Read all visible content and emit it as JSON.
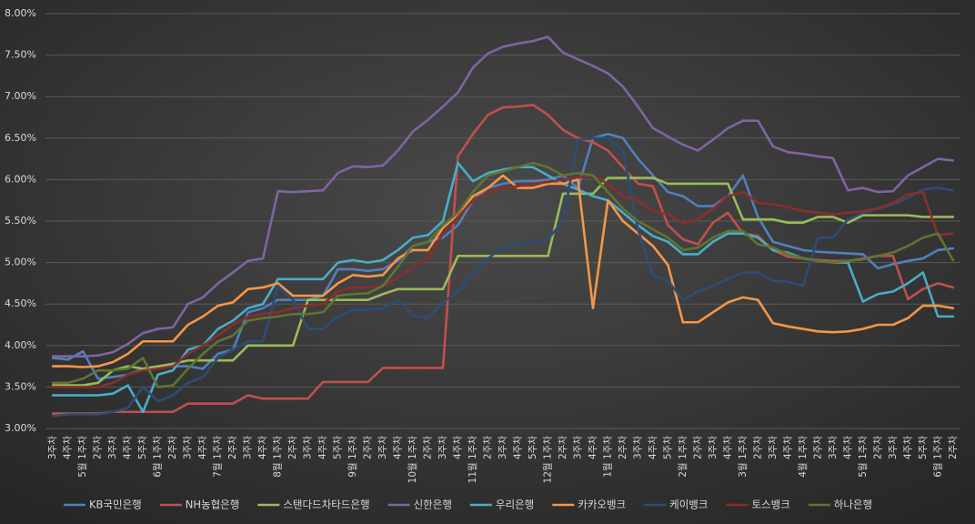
{
  "chart_data": {
    "type": "line",
    "categories": [
      "3주차",
      "4주차",
      "5월 1주차",
      "2주차",
      "3주차",
      "4주차",
      "5주차",
      "6월 1주차",
      "2주차",
      "3주차",
      "4주차",
      "7월 1주차",
      "2주차",
      "3주차",
      "4주차",
      "8월 1주차",
      "2주차",
      "3주차",
      "4주차",
      "5주차",
      "9월 1주차",
      "2주차",
      "3주차",
      "4주차",
      "10월 1주차",
      "2주차",
      "3주차",
      "4주차",
      "11월 1주차",
      "2주차",
      "3주차",
      "4주차",
      "5주차",
      "12월 1주차",
      "2주차",
      "3주차",
      "4주차",
      "1월 1주차",
      "2주차",
      "3주차",
      "4주차",
      "5주차",
      "2월 1주차",
      "2주차",
      "3주차",
      "4주차",
      "3월 1주차",
      "2주차",
      "3주차",
      "4주차",
      "4월 1주차",
      "2주차",
      "3주차",
      "4주차",
      "5월 1주차",
      "2주차",
      "3주차",
      "4주차",
      "5주차",
      "6월 1주차",
      "2주차"
    ],
    "ylim": [
      3,
      8
    ],
    "yticks": [
      {
        "value": 3,
        "label": "3.00%"
      },
      {
        "value": 3.5,
        "label": "3.50%"
      },
      {
        "value": 4,
        "label": "4.00%"
      },
      {
        "value": 4.5,
        "label": "4.50%"
      },
      {
        "value": 5,
        "label": "5.00%"
      },
      {
        "value": 5.5,
        "label": "5.50%"
      },
      {
        "value": 6,
        "label": "6.00%"
      },
      {
        "value": 6.5,
        "label": "6.50%"
      },
      {
        "value": 7,
        "label": "7.00%"
      },
      {
        "value": 7.5,
        "label": "7.50%"
      },
      {
        "value": 8,
        "label": "8.00%"
      }
    ],
    "grid": true,
    "legend": "bottom",
    "series": [
      {
        "name": "KB국민은행",
        "color": "#4f81bd",
        "values": [
          3.85,
          3.83,
          3.93,
          3.6,
          3.62,
          3.65,
          3.72,
          3.75,
          3.75,
          3.75,
          3.72,
          3.9,
          3.95,
          4.4,
          4.45,
          4.55,
          4.55,
          4.55,
          4.6,
          4.92,
          4.92,
          4.9,
          4.92,
          5.02,
          5.2,
          5.25,
          5.3,
          5.45,
          5.75,
          5.9,
          5.95,
          5.98,
          5.98,
          6.0,
          6.05,
          5.9,
          6.5,
          6.55,
          6.5,
          6.25,
          6.05,
          5.85,
          5.8,
          5.68,
          5.68,
          5.8,
          6.05,
          5.55,
          5.25,
          5.2,
          5.15,
          5.13,
          5.12,
          5.11,
          5.1,
          4.93,
          4.98,
          5.02,
          5.05,
          5.15,
          5.17
        ]
      },
      {
        "name": "NH농협은행",
        "color": "#c0504d",
        "values": [
          3.18,
          3.18,
          3.18,
          3.18,
          3.2,
          3.2,
          3.2,
          3.2,
          3.2,
          3.3,
          3.3,
          3.3,
          3.3,
          3.4,
          3.36,
          3.36,
          3.36,
          3.36,
          3.56,
          3.56,
          3.56,
          3.56,
          3.73,
          3.73,
          3.73,
          3.73,
          3.73,
          6.28,
          6.55,
          6.78,
          6.87,
          6.88,
          6.9,
          6.78,
          6.6,
          6.5,
          6.45,
          6.35,
          6.15,
          5.95,
          5.92,
          5.45,
          5.28,
          5.22,
          5.48,
          5.6,
          5.35,
          5.32,
          5.15,
          5.07,
          5.05,
          5.03,
          5.02,
          5.02,
          5.04,
          5.08,
          5.08,
          4.56,
          4.68,
          4.75,
          4.7
        ]
      },
      {
        "name": "스탠다드차타드은행",
        "color": "#9bbb59",
        "values": [
          3.52,
          3.52,
          3.52,
          3.55,
          3.7,
          3.75,
          3.72,
          3.75,
          3.78,
          3.82,
          3.82,
          3.82,
          3.82,
          4.0,
          4.0,
          4.0,
          4.0,
          4.55,
          4.55,
          4.55,
          4.55,
          4.55,
          4.62,
          4.68,
          4.68,
          4.68,
          4.68,
          5.08,
          5.08,
          5.08,
          5.08,
          5.08,
          5.08,
          5.08,
          5.83,
          5.83,
          5.83,
          6.02,
          6.02,
          6.02,
          6.02,
          5.95,
          5.95,
          5.95,
          5.95,
          5.95,
          5.52,
          5.52,
          5.52,
          5.48,
          5.48,
          5.55,
          5.55,
          5.48,
          5.57,
          5.57,
          5.57,
          5.57,
          5.55,
          5.55,
          5.55
        ]
      },
      {
        "name": "신한은행",
        "color": "#8064a2",
        "values": [
          3.87,
          3.87,
          3.87,
          3.88,
          3.92,
          4.02,
          4.15,
          4.2,
          4.22,
          4.5,
          4.58,
          4.75,
          4.88,
          5.02,
          5.05,
          5.86,
          5.85,
          5.86,
          5.87,
          6.08,
          6.16,
          6.15,
          6.17,
          6.35,
          6.58,
          6.72,
          6.88,
          7.05,
          7.35,
          7.52,
          7.6,
          7.64,
          7.67,
          7.72,
          7.53,
          7.45,
          7.37,
          7.28,
          7.12,
          6.88,
          6.62,
          6.52,
          6.42,
          6.35,
          6.48,
          6.62,
          6.71,
          6.71,
          6.4,
          6.33,
          6.31,
          6.28,
          6.26,
          5.87,
          5.9,
          5.85,
          5.86,
          6.05,
          6.15,
          6.25,
          6.23
        ]
      },
      {
        "name": "우리은행",
        "color": "#4bacc6",
        "values": [
          3.4,
          3.4,
          3.4,
          3.4,
          3.42,
          3.52,
          3.2,
          3.65,
          3.7,
          3.95,
          4.0,
          4.2,
          4.3,
          4.45,
          4.5,
          4.8,
          4.8,
          4.8,
          4.8,
          5.0,
          5.03,
          5.0,
          5.03,
          5.15,
          5.3,
          5.33,
          5.5,
          6.2,
          5.98,
          6.08,
          6.12,
          6.15,
          6.15,
          6.05,
          5.95,
          5.88,
          5.8,
          5.75,
          5.6,
          5.45,
          5.32,
          5.25,
          5.1,
          5.1,
          5.25,
          5.35,
          5.35,
          5.3,
          5.15,
          5.12,
          5.05,
          5.02,
          5.0,
          5.0,
          4.53,
          4.62,
          4.65,
          4.75,
          4.88,
          4.35,
          4.35
        ]
      },
      {
        "name": "카카오뱅크",
        "color": "#f79646",
        "values": [
          3.75,
          3.75,
          3.74,
          3.75,
          3.8,
          3.9,
          4.05,
          4.05,
          4.05,
          4.25,
          4.35,
          4.48,
          4.52,
          4.68,
          4.7,
          4.75,
          4.6,
          4.6,
          4.6,
          4.75,
          4.85,
          4.83,
          4.85,
          5.05,
          5.15,
          5.15,
          5.42,
          5.58,
          5.8,
          5.9,
          6.05,
          5.9,
          5.9,
          5.95,
          5.95,
          6.0,
          4.45,
          5.75,
          5.5,
          5.35,
          5.2,
          4.97,
          4.28,
          4.28,
          4.4,
          4.52,
          4.58,
          4.55,
          4.27,
          4.23,
          4.2,
          4.17,
          4.16,
          4.17,
          4.2,
          4.25,
          4.25,
          4.33,
          4.48,
          4.48,
          4.45
        ]
      },
      {
        "name": "케이뱅크",
        "color": "#2c4d75",
        "values": [
          3.15,
          3.17,
          3.17,
          3.17,
          3.2,
          3.25,
          3.5,
          3.33,
          3.4,
          3.55,
          3.62,
          3.85,
          3.95,
          4.05,
          4.05,
          4.72,
          4.55,
          4.2,
          4.2,
          4.35,
          4.43,
          4.43,
          4.45,
          4.55,
          4.36,
          4.33,
          4.52,
          4.65,
          4.85,
          5.05,
          5.18,
          5.22,
          5.25,
          5.28,
          5.5,
          6.48,
          6.5,
          6.5,
          6.35,
          5.4,
          4.85,
          4.78,
          4.55,
          4.65,
          4.72,
          4.8,
          4.88,
          4.88,
          4.78,
          4.77,
          4.72,
          5.3,
          5.3,
          5.52,
          5.6,
          5.65,
          5.7,
          5.78,
          5.88,
          5.9,
          5.87
        ]
      },
      {
        "name": "토스뱅크",
        "color": "#8b2e2b",
        "values": [
          3.5,
          3.5,
          3.5,
          3.5,
          3.55,
          3.65,
          3.7,
          3.72,
          3.75,
          3.9,
          4.0,
          4.12,
          4.25,
          4.35,
          4.38,
          4.4,
          4.45,
          4.48,
          4.5,
          4.65,
          4.7,
          4.7,
          4.72,
          4.82,
          4.95,
          5.05,
          5.35,
          5.55,
          5.75,
          5.85,
          5.9,
          5.92,
          5.95,
          5.97,
          6.0,
          6.03,
          6.05,
          5.95,
          5.8,
          5.75,
          5.62,
          5.58,
          5.48,
          5.52,
          5.65,
          5.8,
          5.85,
          5.72,
          5.7,
          5.67,
          5.62,
          5.6,
          5.58,
          5.6,
          5.62,
          5.65,
          5.72,
          5.82,
          5.85,
          5.33,
          5.35
        ]
      },
      {
        "name": "하나은행",
        "color": "#5f7530",
        "values": [
          3.55,
          3.55,
          3.6,
          3.7,
          3.7,
          3.72,
          3.85,
          3.5,
          3.52,
          3.72,
          3.9,
          4.05,
          4.12,
          4.3,
          4.33,
          4.35,
          4.38,
          4.38,
          4.4,
          4.6,
          4.62,
          4.63,
          4.72,
          4.95,
          5.2,
          5.25,
          5.45,
          5.6,
          5.85,
          6.05,
          6.1,
          6.15,
          6.2,
          6.15,
          6.05,
          6.08,
          6.05,
          5.85,
          5.65,
          5.5,
          5.4,
          5.3,
          5.15,
          5.18,
          5.3,
          5.38,
          5.38,
          5.22,
          5.18,
          5.1,
          5.05,
          5.02,
          5.0,
          5.02,
          5.05,
          5.08,
          5.12,
          5.2,
          5.3,
          5.35,
          5.03
        ]
      }
    ]
  }
}
